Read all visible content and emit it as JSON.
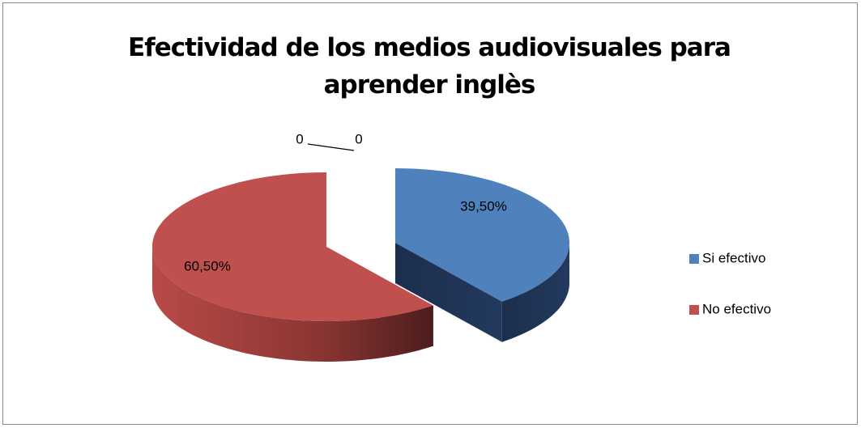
{
  "chart_data": {
    "type": "pie3d",
    "title": "Efectividad de los medios audiovisuales para aprender inglès",
    "categories": [
      "Si efectivo",
      "No efectivo",
      null,
      null
    ],
    "values": [
      39.5,
      60.5,
      0,
      0
    ],
    "value_labels": [
      "39,50%",
      "60,50%",
      "0",
      "0"
    ],
    "colors": [
      "#4f81bd",
      "#c0504d",
      "#9bbb59",
      "#8064a2"
    ],
    "legend": "right"
  }
}
